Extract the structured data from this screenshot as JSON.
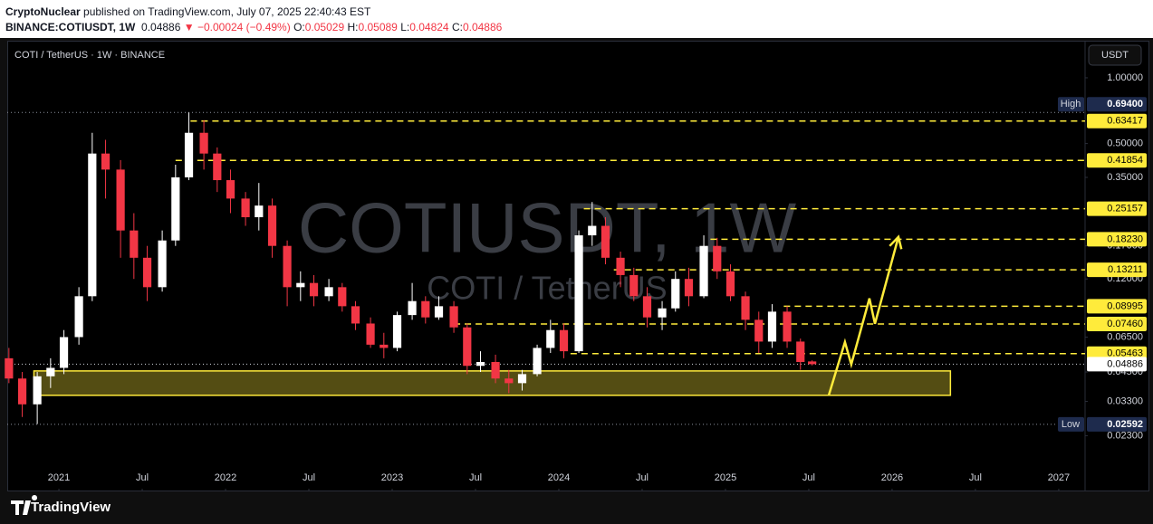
{
  "header": {
    "author": "CryptoNuclear",
    "published": "published on TradingView.com, July 07, 2025 22:40:43 EST",
    "symbol": "BINANCE:COTIUSDT, 1W",
    "price": "0.04886",
    "change": "▼ −0.00024 (−0.49%)",
    "ohlc": [
      [
        "O:",
        "0.05029"
      ],
      [
        "H:",
        "0.05089"
      ],
      [
        "L:",
        "0.04824"
      ],
      [
        "C:",
        "0.04886"
      ]
    ]
  },
  "chart_data": {
    "type": "candlestick",
    "title": "COTI / TetherUS · 1W · BINANCE",
    "watermark": [
      "COTIUSDT, 1W",
      "COTI / TetherUS"
    ],
    "currency": "USDT",
    "log_scale": true,
    "grid": false,
    "up_color": "#ffffff",
    "down_color": "#f23645",
    "level_color": "#ffeb3b",
    "xlim": [
      2020.69,
      2027.158
    ],
    "ylim": [
      0.0129,
      1.478
    ],
    "xticks": [
      2021,
      {
        "value": 2021.5,
        "label": "Jul"
      },
      2022,
      {
        "value": 2022.5,
        "label": "Jul"
      },
      2023,
      {
        "value": 2023.5,
        "label": "Jul"
      },
      2024,
      {
        "value": 2024.5,
        "label": "Jul"
      },
      2025,
      {
        "value": 2025.5,
        "label": "Jul"
      },
      2026,
      {
        "value": 2026.5,
        "label": "Jul"
      },
      2027
    ],
    "yticks": [
      {
        "value": 1,
        "label": "1.00000"
      },
      {
        "value": 0.5,
        "label": "0.50000"
      },
      {
        "value": 0.35,
        "label": "0.35000"
      },
      {
        "value": 0.17,
        "label": "0.17000"
      },
      {
        "value": 0.12,
        "label": "0.12000"
      },
      {
        "value": 0.065,
        "label": "0.06500"
      },
      {
        "value": 0.045,
        "label": "0.04500"
      },
      {
        "value": 0.033,
        "label": "0.03300"
      },
      {
        "value": 0.023,
        "label": "0.02300"
      }
    ],
    "candles": {
      "x": [
        2020.7,
        2020.78,
        2020.87,
        2020.95,
        2021.03,
        2021.12,
        2021.2,
        2021.28,
        2021.37,
        2021.45,
        2021.53,
        2021.62,
        2021.7,
        2021.78,
        2021.87,
        2021.95,
        2022.03,
        2022.12,
        2022.2,
        2022.28,
        2022.37,
        2022.45,
        2022.53,
        2022.62,
        2022.7,
        2022.78,
        2022.87,
        2022.95,
        2023.03,
        2023.12,
        2023.2,
        2023.28,
        2023.37,
        2023.45,
        2023.53,
        2023.62,
        2023.7,
        2023.78,
        2023.87,
        2023.95,
        2024.03,
        2024.12,
        2024.2,
        2024.28,
        2024.37,
        2024.45,
        2024.53,
        2024.62,
        2024.7,
        2024.78,
        2024.87,
        2024.95,
        2025.03,
        2025.12,
        2025.2,
        2025.28,
        2025.37,
        2025.45,
        2025.52
      ],
      "open": [
        0.052,
        0.042,
        0.032,
        0.043,
        0.047,
        0.065,
        0.1,
        0.45,
        0.38,
        0.2,
        0.15,
        0.11,
        0.18,
        0.35,
        0.56,
        0.45,
        0.34,
        0.28,
        0.23,
        0.26,
        0.17,
        0.11,
        0.115,
        0.1,
        0.11,
        0.09,
        0.075,
        0.06,
        0.058,
        0.082,
        0.095,
        0.08,
        0.09,
        0.072,
        0.048,
        0.05,
        0.042,
        0.04,
        0.044,
        0.058,
        0.07,
        0.056,
        0.19,
        0.21,
        0.15,
        0.125,
        0.1,
        0.08,
        0.088,
        0.12,
        0.1,
        0.17,
        0.13,
        0.1,
        0.078,
        0.062,
        0.085,
        0.062,
        0.05029
      ],
      "high": [
        0.058,
        0.045,
        0.045,
        0.052,
        0.07,
        0.11,
        0.56,
        0.52,
        0.42,
        0.24,
        0.17,
        0.2,
        0.4,
        0.694,
        0.64,
        0.48,
        0.38,
        0.3,
        0.33,
        0.28,
        0.18,
        0.13,
        0.125,
        0.12,
        0.115,
        0.095,
        0.08,
        0.068,
        0.085,
        0.115,
        0.1,
        0.1,
        0.095,
        0.075,
        0.056,
        0.054,
        0.046,
        0.046,
        0.06,
        0.078,
        0.075,
        0.2,
        0.27,
        0.23,
        0.16,
        0.135,
        0.11,
        0.095,
        0.13,
        0.135,
        0.19,
        0.185,
        0.14,
        0.105,
        0.085,
        0.092,
        0.09,
        0.064,
        0.05089
      ],
      "low": [
        0.04,
        0.028,
        0.026,
        0.038,
        0.044,
        0.06,
        0.095,
        0.28,
        0.15,
        0.12,
        0.095,
        0.105,
        0.17,
        0.34,
        0.38,
        0.3,
        0.24,
        0.21,
        0.2,
        0.15,
        0.09,
        0.095,
        0.09,
        0.095,
        0.085,
        0.07,
        0.058,
        0.052,
        0.056,
        0.078,
        0.075,
        0.078,
        0.068,
        0.044,
        0.045,
        0.04,
        0.036,
        0.037,
        0.043,
        0.055,
        0.052,
        0.055,
        0.17,
        0.14,
        0.11,
        0.095,
        0.072,
        0.07,
        0.085,
        0.09,
        0.098,
        0.12,
        0.095,
        0.07,
        0.055,
        0.058,
        0.058,
        0.046,
        0.04824
      ],
      "close": [
        0.042,
        0.032,
        0.043,
        0.047,
        0.065,
        0.1,
        0.45,
        0.38,
        0.2,
        0.15,
        0.11,
        0.18,
        0.35,
        0.56,
        0.45,
        0.34,
        0.28,
        0.23,
        0.26,
        0.17,
        0.11,
        0.115,
        0.1,
        0.11,
        0.09,
        0.075,
        0.06,
        0.058,
        0.082,
        0.095,
        0.08,
        0.09,
        0.072,
        0.048,
        0.05,
        0.042,
        0.04,
        0.044,
        0.058,
        0.07,
        0.056,
        0.19,
        0.21,
        0.15,
        0.125,
        0.1,
        0.08,
        0.088,
        0.12,
        0.1,
        0.17,
        0.13,
        0.1,
        0.078,
        0.062,
        0.085,
        0.062,
        0.05,
        0.04886
      ]
    },
    "levels": [
      {
        "value": 0.63417,
        "from": 2021.79
      },
      {
        "value": 0.41854,
        "from": 2021.7
      },
      {
        "value": 0.25157,
        "from": 2024.15
      },
      {
        "value": 0.1823,
        "label": "0.18230",
        "from": 2024.91
      },
      {
        "value": 0.13211,
        "from": 2024.33
      },
      {
        "value": 0.08995,
        "from": 2025.35
      },
      {
        "value": 0.0746,
        "label": "0.07460",
        "from": 2023.37
      },
      {
        "value": 0.05463,
        "from": 2024.07
      }
    ],
    "high": {
      "name": "High",
      "value": 0.694,
      "label": "0.69400"
    },
    "low": {
      "name": "Low",
      "value": 0.02592
    },
    "last": {
      "value": 0.04886
    },
    "zone": {
      "x": [
        2020.85,
        2026.35
      ],
      "y": [
        0.0352,
        0.0455
      ]
    },
    "projection": {
      "x": [
        2025.62,
        2025.717,
        2025.755,
        2025.864,
        2025.897,
        2026.038
      ],
      "y": [
        0.0352,
        0.0617,
        0.0487,
        0.0977,
        0.0748,
        0.187
      ]
    }
  },
  "footer": {
    "brand": "TradingView"
  }
}
